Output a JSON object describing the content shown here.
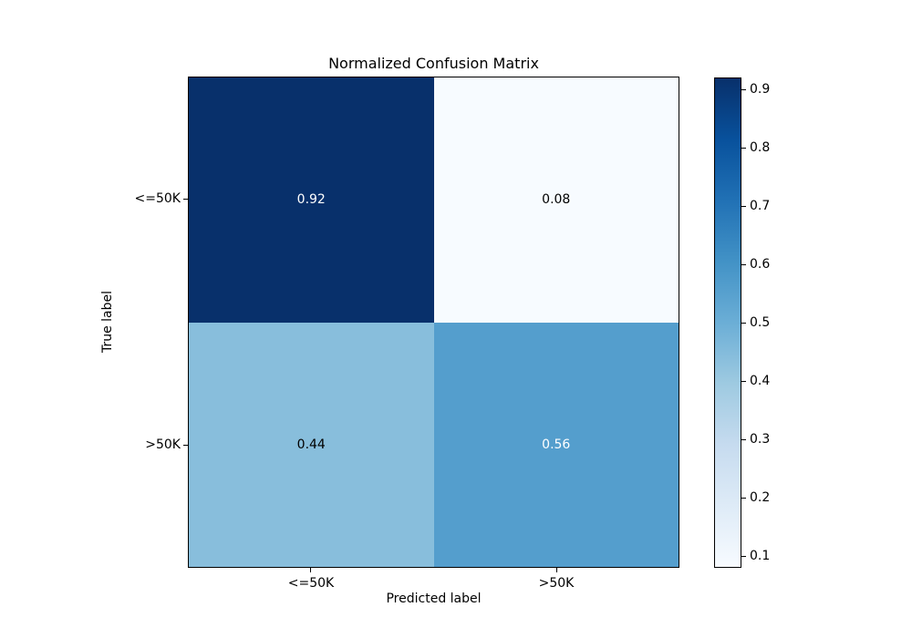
{
  "chart_data": {
    "type": "heatmap",
    "title": "Normalized Confusion Matrix",
    "xlabel": "Predicted label",
    "ylabel": "True label",
    "x_tick_labels": [
      "<=50K",
      ">50K"
    ],
    "y_tick_labels": [
      "<=50K",
      ">50K"
    ],
    "rows": [
      {
        "true_label": "<=50K",
        "values": [
          0.92,
          0.08
        ]
      },
      {
        "true_label": ">50K",
        "values": [
          0.44,
          0.56
        ]
      }
    ],
    "cells": [
      {
        "row": "<=50K",
        "col": "<=50K",
        "value": 0.92,
        "label": "0.92",
        "color": "#08306b",
        "text_color": "#ffffff"
      },
      {
        "row": "<=50K",
        "col": ">50K",
        "value": 0.08,
        "label": "0.08",
        "color": "#f7fbff",
        "text_color": "#000000"
      },
      {
        "row": ">50K",
        "col": "<=50K",
        "value": 0.44,
        "label": "0.44",
        "color": "#88bedc",
        "text_color": "#000000"
      },
      {
        "row": ">50K",
        "col": ">50K",
        "value": 0.56,
        "label": "0.56",
        "color": "#549ecd",
        "text_color": "#ffffff"
      }
    ],
    "colormap_name": "Blues",
    "grid": false,
    "colorbar": {
      "vmin": 0.08,
      "vmax": 0.92,
      "tick_labels": [
        "0.9",
        "0.8",
        "0.7",
        "0.6",
        "0.5",
        "0.4",
        "0.3",
        "0.2",
        "0.1"
      ],
      "gradient_top_to_bottom": [
        "#08306b",
        "#08519c",
        "#2171b5",
        "#4292c6",
        "#6baed6",
        "#9ecae1",
        "#c6dbef",
        "#deebf7",
        "#f7fbff"
      ]
    }
  }
}
